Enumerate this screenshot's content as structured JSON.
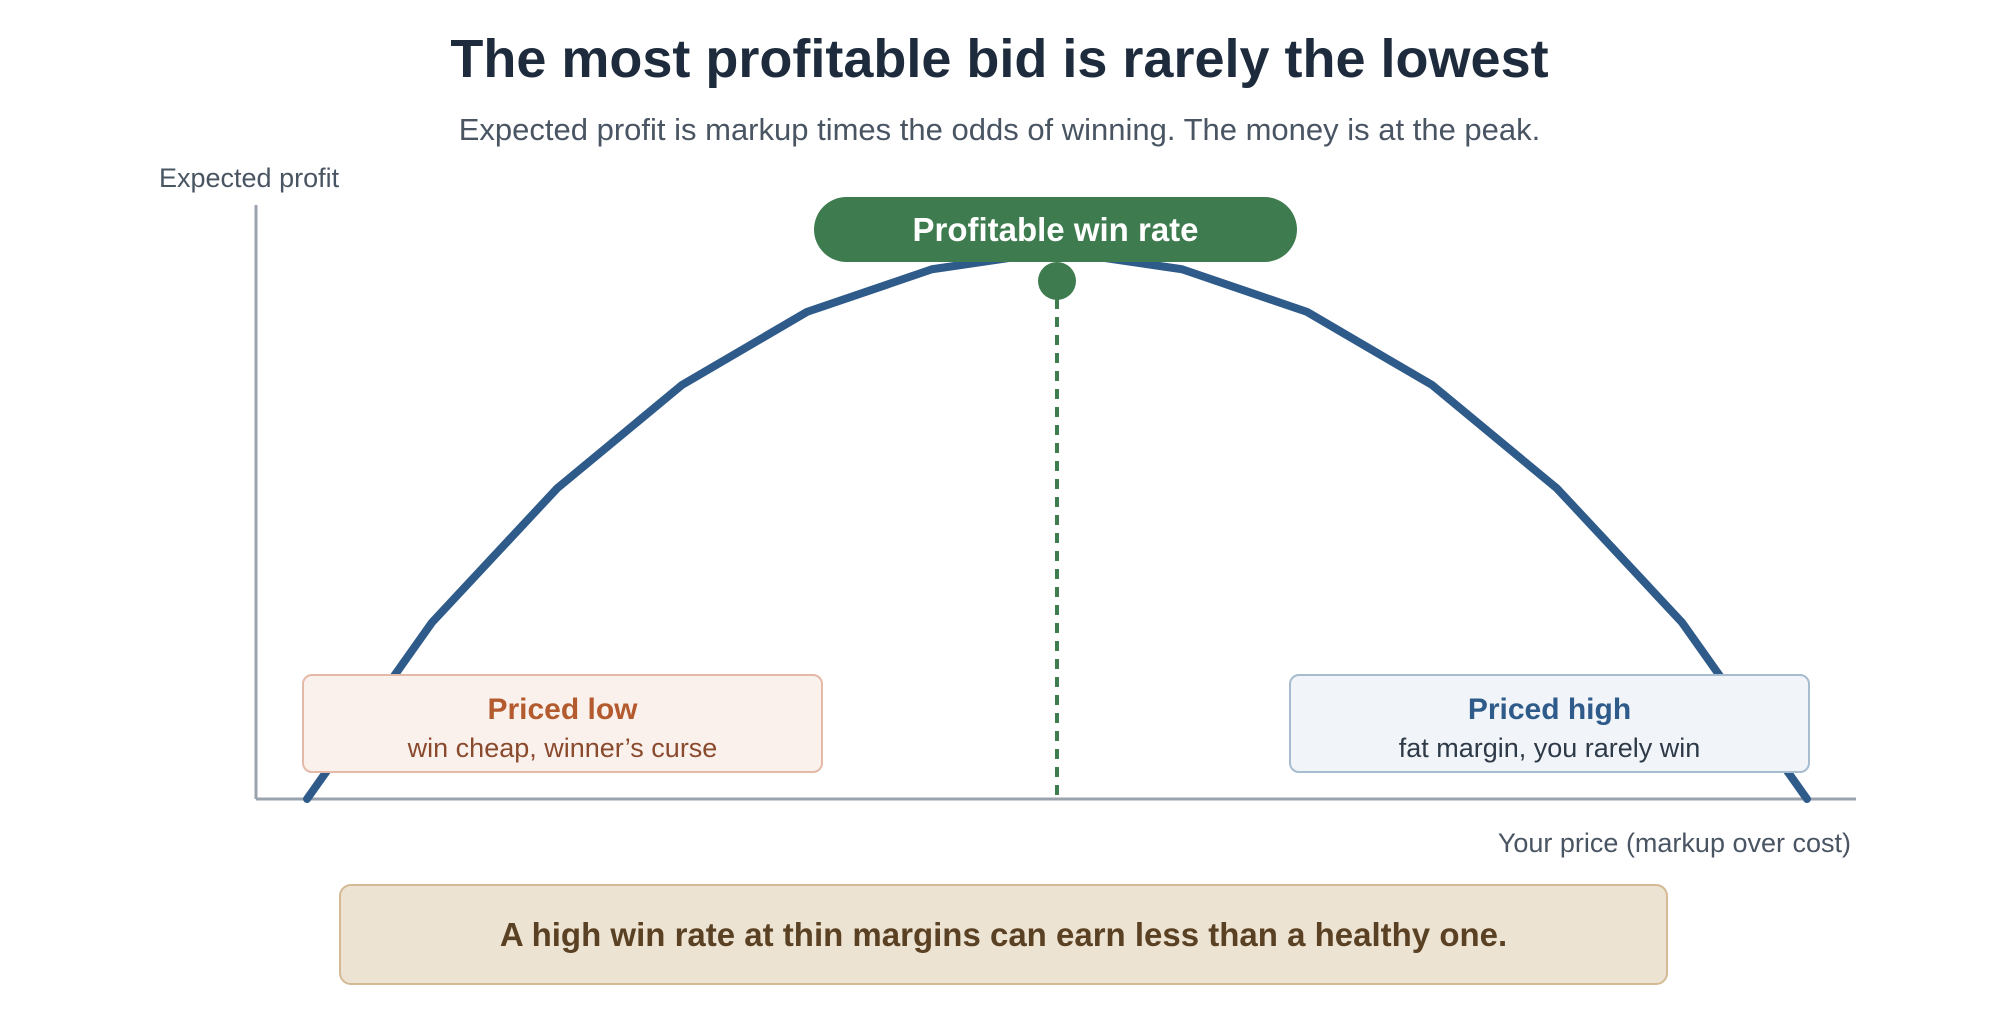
{
  "header": {
    "title": "The most profitable bid is rarely the lowest",
    "subtitle": "Expected profit is markup times the odds of winning. The money is at the peak."
  },
  "axes": {
    "y_label": "Expected profit",
    "x_label": "Your price (markup over cost)"
  },
  "curve": {
    "profile": [
      0.0,
      0.29,
      0.51,
      0.68,
      0.8,
      0.87,
      0.9,
      0.87,
      0.8,
      0.68,
      0.51,
      0.29,
      0.0
    ],
    "peak_index": 6
  },
  "peak_label": "Profitable win rate",
  "priced_low": {
    "title": "Priced low",
    "subtitle": "win cheap, winner’s curse"
  },
  "priced_high": {
    "title": "Priced high",
    "subtitle": "fat margin, you rarely win"
  },
  "callout": "A high win rate at thin margins can earn less than a healthy one.",
  "colors": {
    "title": "#1e2b3c",
    "curve": "#2f5b8a",
    "peak": "#3e7b4f",
    "axis": "#9aa3ad",
    "low_accent": "#b35a2e",
    "high_accent": "#2f5b8a",
    "callout_bg": "#ede3d2"
  }
}
